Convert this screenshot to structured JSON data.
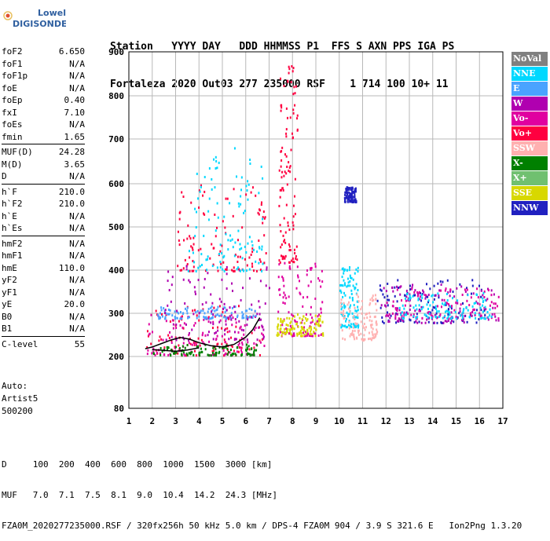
{
  "logo": {
    "line1": "Lowell",
    "line2": "DIGISONDE"
  },
  "header": {
    "line1": "Station   YYYY DAY   DDD HHMMSS P1  FFS S AXN PPS IGA PS",
    "line2": "Fortaleza 2020 Out03 277 235000 RSF    1 714 100 10+ 11"
  },
  "params": [
    {
      "group": [
        {
          "name": "foF2",
          "value": "6.650"
        },
        {
          "name": "foF1",
          "value": "N/A"
        },
        {
          "name": "foF1p",
          "value": "N/A"
        },
        {
          "name": "foE",
          "value": "N/A"
        },
        {
          "name": "foEp",
          "value": "0.40"
        },
        {
          "name": "fxI",
          "value": "7.10"
        },
        {
          "name": "foEs",
          "value": "N/A"
        },
        {
          "name": "fmin",
          "value": "1.65"
        }
      ]
    },
    {
      "group": [
        {
          "name": "MUF(D)",
          "value": "24.28"
        },
        {
          "name": "M(D)",
          "value": "3.65"
        },
        {
          "name": "D",
          "value": "N/A"
        }
      ]
    },
    {
      "group": [
        {
          "name": "h`F",
          "value": "210.0"
        },
        {
          "name": "h`F2",
          "value": "210.0"
        },
        {
          "name": "h`E",
          "value": "N/A"
        },
        {
          "name": "h`Es",
          "value": "N/A"
        }
      ]
    },
    {
      "group": [
        {
          "name": "hmF2",
          "value": "N/A"
        },
        {
          "name": "hmF1",
          "value": "N/A"
        },
        {
          "name": "hmE",
          "value": "110.0"
        },
        {
          "name": "yF2",
          "value": "N/A"
        },
        {
          "name": "yF1",
          "value": "N/A"
        },
        {
          "name": "yE",
          "value": "20.0"
        },
        {
          "name": "B0",
          "value": "N/A"
        },
        {
          "name": "B1",
          "value": "N/A"
        }
      ]
    },
    {
      "group": [
        {
          "name": "C-level",
          "value": "55"
        }
      ]
    }
  ],
  "auto": {
    "line1": "Auto:",
    "line2": "Artist5",
    "line3": "500200"
  },
  "legend": [
    {
      "label": "NoVal",
      "color": "#808080"
    },
    {
      "label": "NNE",
      "color": "#00d8ff"
    },
    {
      "label": "E",
      "color": "#4aa3ff"
    },
    {
      "label": "W",
      "color": "#b000b0"
    },
    {
      "label": "Vo-",
      "color": "#e000a0"
    },
    {
      "label": "Vo+",
      "color": "#ff0040"
    },
    {
      "label": "SSW",
      "color": "#ffb0b0"
    },
    {
      "label": "X-",
      "color": "#008000"
    },
    {
      "label": "X+",
      "color": "#70c070"
    },
    {
      "label": "SSE",
      "color": "#d8d800"
    },
    {
      "label": "NNW",
      "color": "#2020c0"
    }
  ],
  "chart_data": {
    "type": "scatter",
    "xlim": [
      1,
      17
    ],
    "ylim": [
      80,
      900
    ],
    "x_ticks": [
      "1",
      "2",
      "3",
      "4",
      "5",
      "6",
      "7",
      "8",
      "9",
      "10",
      "11",
      "12",
      "13",
      "14",
      "15",
      "16",
      "17"
    ],
    "y_ticks": [
      "80",
      "200",
      "300",
      "400",
      "500",
      "600",
      "700",
      "800",
      "900"
    ],
    "grid": true,
    "traces": [
      {
        "name": "h'F2 trace (line)",
        "color": "#000000",
        "x": [
          1.7,
          2.0,
          2.4,
          2.8,
          3.2,
          3.6,
          4.0,
          4.5,
          5.0,
          5.5,
          6.0,
          6.3,
          6.6
        ],
        "y": [
          218,
          222,
          230,
          238,
          244,
          240,
          232,
          225,
          222,
          228,
          245,
          262,
          290
        ]
      },
      {
        "name": "E trace (line)",
        "color": "#000000",
        "x": [
          2.0,
          2.5,
          3.0,
          3.5,
          4.0
        ],
        "y": [
          216,
          214,
          212,
          215,
          220
        ]
      }
    ],
    "clusters": [
      {
        "x": [
          1.7,
          6.7
        ],
        "y": [
          205,
          320
        ],
        "color": "#ff0040"
      },
      {
        "x": [
          1.7,
          6.8
        ],
        "y": [
          205,
          300
        ],
        "color": "#e000a0"
      },
      {
        "x": [
          2.0,
          6.5
        ],
        "y": [
          205,
          230
        ],
        "color": "#008000"
      },
      {
        "x": [
          2.2,
          6.5
        ],
        "y": [
          290,
          320
        ],
        "color": "#4aa3ff"
      },
      {
        "x": [
          2.5,
          7.0
        ],
        "y": [
          240,
          420
        ],
        "color": "#b000b0"
      },
      {
        "x": [
          3.0,
          6.9
        ],
        "y": [
          400,
          600
        ],
        "color": "#ff0040"
      },
      {
        "x": [
          3.5,
          6.7
        ],
        "y": [
          400,
          700
        ],
        "color": "#00d8ff"
      },
      {
        "x": [
          7.3,
          9.3
        ],
        "y": [
          250,
          420
        ],
        "color": "#e000a0"
      },
      {
        "x": [
          7.3,
          9.3
        ],
        "y": [
          250,
          300
        ],
        "color": "#d8d800"
      },
      {
        "x": [
          7.4,
          8.2
        ],
        "y": [
          420,
          870
        ],
        "color": "#ff0040"
      },
      {
        "x": [
          10.0,
          10.8
        ],
        "y": [
          270,
          410
        ],
        "color": "#00d8ff"
      },
      {
        "x": [
          10.0,
          11.6
        ],
        "y": [
          240,
          350
        ],
        "color": "#ffb0b0"
      },
      {
        "x": [
          10.2,
          10.7
        ],
        "y": [
          560,
          595
        ],
        "color": "#2020c0"
      },
      {
        "x": [
          11.6,
          16.3
        ],
        "y": [
          280,
          380
        ],
        "color": "#2020c0"
      },
      {
        "x": [
          11.6,
          16.8
        ],
        "y": [
          280,
          370
        ],
        "color": "#b000b0"
      },
      {
        "x": [
          12.0,
          16.8
        ],
        "y": [
          290,
          360
        ],
        "color": "#e000a0"
      },
      {
        "x": [
          12.5,
          16.5
        ],
        "y": [
          290,
          350
        ],
        "color": "#00d8ff"
      }
    ]
  },
  "footer": {
    "line1": "D     100  200  400  600  800  1000  1500  3000 [km]",
    "line2": "MUF   7.0  7.1  7.5  8.1  9.0  10.4  14.2  24.3 [MHz]",
    "line3": "FZA0M_2020277235000.RSF / 320fx256h 50 kHz 5.0 km / DPS-4 FZA0M 904 / 3.9 S 321.6 E   Ion2Png 1.3.20"
  }
}
